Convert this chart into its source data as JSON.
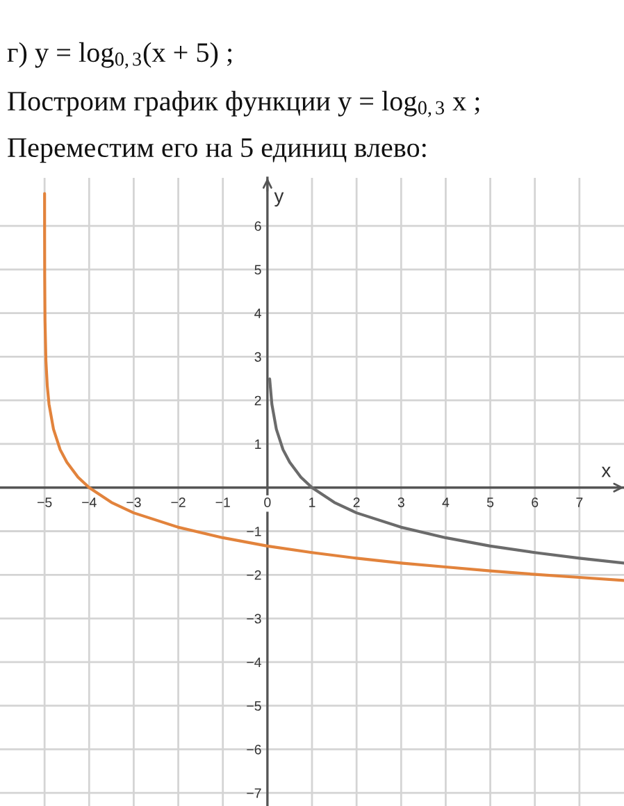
{
  "chart_data": {
    "type": "line",
    "title": "г) y = log$_{0,3}$(x + 5) ;",
    "subtitle": "Построим график функции y = log$_{0,3}$ x ;",
    "annotations": [
      "Переместим его на 5 единиц влево:"
    ],
    "xlabel": "x",
    "ylabel": "y",
    "series": [
      {
        "color": "#e2833c",
        "x": [
          -4.9997,
          -4.999,
          -4.997,
          -4.99,
          -4.97,
          -4.94,
          -4.9,
          -4.8,
          -4.65,
          -4.5,
          -4.25,
          -4,
          -3.5,
          -3,
          -2,
          -1,
          0,
          1,
          2,
          3,
          4,
          5,
          6,
          7,
          8
        ],
        "values": [
          6.74,
          5.74,
          4.83,
          3.82,
          2.91,
          2.34,
          1.91,
          1.34,
          0.87,
          0.58,
          0.24,
          0,
          -0.34,
          -0.58,
          -0.91,
          -1.15,
          -1.34,
          -1.49,
          -1.62,
          -1.73,
          -1.82,
          -1.91,
          -1.99,
          -2.06,
          -2.13
        ]
      },
      {
        "color": "#6b6b6b",
        "x": [
          0.05,
          0.1,
          0.2,
          0.35,
          0.5,
          0.75,
          1,
          1.5,
          2,
          3,
          4,
          5,
          6,
          7,
          8
        ],
        "values": [
          2.49,
          1.91,
          1.34,
          0.87,
          0.58,
          0.24,
          0,
          -0.34,
          -0.58,
          -0.91,
          -1.15,
          -1.34,
          -1.49,
          -1.62,
          -1.73
        ]
      }
    ],
    "xlim": [
      -6,
      8
    ],
    "ylim": [
      -7.3,
      7.1
    ],
    "xticks": [
      {
        "value": -5,
        "label": "−5"
      },
      {
        "value": -4,
        "label": "−4"
      },
      {
        "value": -3,
        "label": "−3"
      },
      {
        "value": -2,
        "label": "−2"
      },
      {
        "value": -1,
        "label": "−1"
      },
      0,
      1,
      2,
      3,
      4,
      5,
      6,
      7
    ],
    "yticks": [
      {
        "value": -7,
        "label": "−7"
      },
      {
        "value": -6,
        "label": "−6"
      },
      {
        "value": -5,
        "label": "−5"
      },
      {
        "value": -4,
        "label": "−4"
      },
      {
        "value": -3,
        "label": "−3"
      },
      {
        "value": -2,
        "label": "−2"
      },
      {
        "value": -1,
        "label": "−1"
      },
      1,
      2,
      3,
      4,
      5,
      6
    ],
    "grid": true
  }
}
